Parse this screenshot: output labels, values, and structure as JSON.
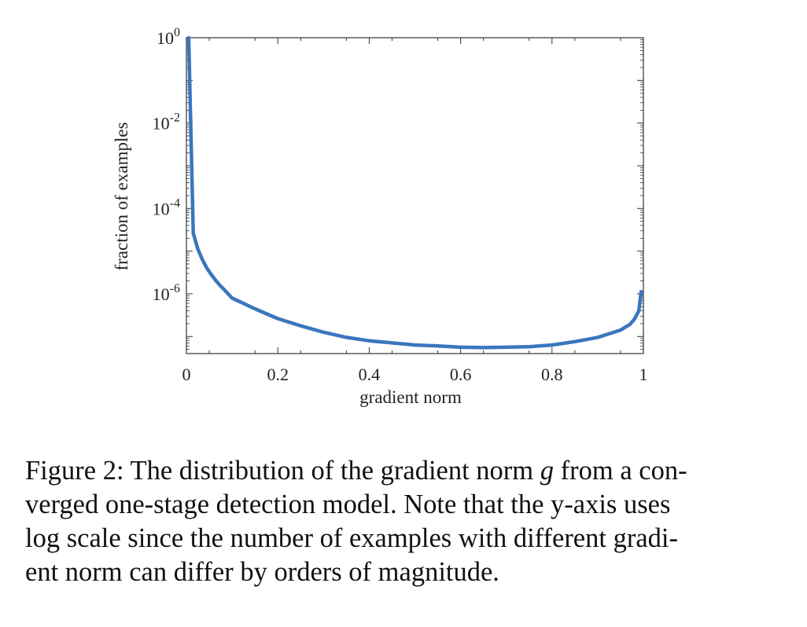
{
  "chart_data": {
    "type": "line",
    "xlabel": "gradient norm",
    "ylabel": "fraction of examples",
    "xlim": [
      0,
      1
    ],
    "ylim_log10": [
      -7.4,
      0
    ],
    "y_scale": "log",
    "grid": false,
    "x_ticks": [
      {
        "value": 0,
        "label": "0"
      },
      {
        "value": 0.2,
        "label": "0.2"
      },
      {
        "value": 0.4,
        "label": "0.4"
      },
      {
        "value": 0.6,
        "label": "0.6"
      },
      {
        "value": 0.8,
        "label": "0.8"
      },
      {
        "value": 1,
        "label": "1"
      }
    ],
    "y_ticks": [
      {
        "exp": 0,
        "base": "10",
        "sup": "0"
      },
      {
        "exp": -2,
        "base": "10",
        "sup": "-2"
      },
      {
        "exp": -4,
        "base": "10",
        "sup": "-4"
      },
      {
        "exp": -6,
        "base": "10",
        "sup": "-6"
      }
    ],
    "series": [
      {
        "color": "#3a76bd",
        "x": [
          0.005,
          0.015,
          0.025,
          0.035,
          0.045,
          0.055,
          0.065,
          0.075,
          0.085,
          0.1,
          0.12,
          0.15,
          0.2,
          0.25,
          0.3,
          0.35,
          0.4,
          0.45,
          0.5,
          0.55,
          0.6,
          0.65,
          0.7,
          0.75,
          0.8,
          0.85,
          0.9,
          0.93,
          0.95,
          0.97,
          0.98,
          0.99,
          0.995
        ],
        "y_log10": [
          0.0,
          -4.58,
          -4.95,
          -5.2,
          -5.4,
          -5.56,
          -5.7,
          -5.82,
          -5.93,
          -6.1,
          -6.2,
          -6.35,
          -6.58,
          -6.75,
          -6.9,
          -7.02,
          -7.1,
          -7.15,
          -7.2,
          -7.22,
          -7.25,
          -7.26,
          -7.25,
          -7.24,
          -7.2,
          -7.12,
          -7.02,
          -6.92,
          -6.85,
          -6.72,
          -6.6,
          -6.4,
          -5.95
        ]
      }
    ]
  },
  "caption": {
    "line1_a": "Figure 2: The distribution of the gradient norm ",
    "line1_g": "g",
    "line1_b": " from a con-",
    "line2": "verged one-stage detection model. Note that the y-axis uses",
    "line3": "log scale since the number of examples with different gradi-",
    "line4": "ent norm can differ by orders of magnitude."
  }
}
